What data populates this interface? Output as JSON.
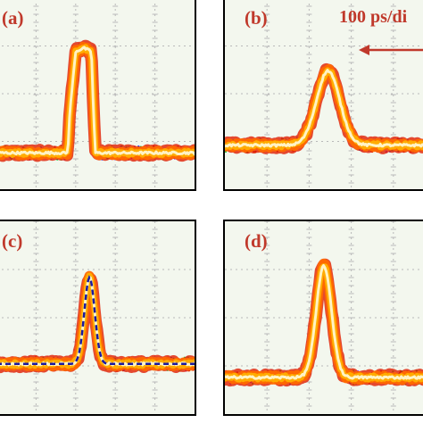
{
  "figure": {
    "scale_annotation": "100 ps/di",
    "colors": {
      "background": "#f3f7ee",
      "trace_core": "#fff7d0",
      "trace_inner": "#ffb000",
      "trace_outer": "#ff6a00",
      "trace_edge": "#e01d00",
      "noise": [
        "#2b4cff",
        "#25c23a",
        "#a020f0",
        "#e01d00"
      ],
      "grid": "#b9b9b9",
      "label": "#c0392b",
      "fit": "#1a1aa0"
    }
  },
  "chart_data": [
    {
      "panel": "(a)",
      "type": "line",
      "shape": "square",
      "xlim": [
        0,
        1
      ],
      "ylim": [
        0,
        1
      ],
      "grid": true,
      "x": [
        0.0,
        0.36,
        0.37,
        0.4,
        0.44,
        0.48,
        0.49,
        0.5,
        1.0
      ],
      "y": [
        0.19,
        0.19,
        0.4,
        0.72,
        0.74,
        0.72,
        0.4,
        0.19,
        0.19
      ]
    },
    {
      "panel": "(b)",
      "type": "line",
      "shape": "gaussian",
      "xlim": [
        0,
        1
      ],
      "ylim": [
        0,
        1
      ],
      "grid": true,
      "center": 0.49,
      "width": 0.055,
      "baseline": 0.23,
      "peak": 0.62,
      "annotation": "100 ps/di"
    },
    {
      "panel": "(c)",
      "type": "line",
      "shape": "gaussian",
      "xlim": [
        0,
        1
      ],
      "ylim": [
        0,
        1
      ],
      "grid": true,
      "center": 0.47,
      "width": 0.026,
      "baseline": 0.26,
      "peak": 0.71,
      "fit": {
        "style": "dashed",
        "center": 0.47,
        "width": 0.026,
        "baseline": 0.26,
        "peak": 0.71
      }
    },
    {
      "panel": "(d)",
      "type": "line",
      "shape": "gaussian",
      "xlim": [
        0,
        1
      ],
      "ylim": [
        0,
        1
      ],
      "grid": true,
      "center": 0.47,
      "width": 0.036,
      "baseline": 0.19,
      "peak": 0.77
    }
  ]
}
